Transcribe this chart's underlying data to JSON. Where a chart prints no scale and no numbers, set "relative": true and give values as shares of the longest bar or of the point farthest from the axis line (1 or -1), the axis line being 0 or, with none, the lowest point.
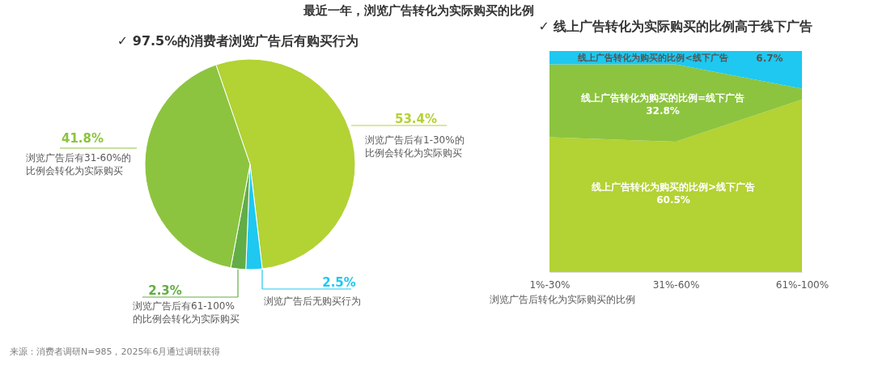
{
  "chart_data": [
    {
      "type": "pie",
      "title": "最近一年，浏览广告转化为实际购买的比例",
      "subtitle": "✓  97.5%的消费者浏览广告后有购买行为",
      "categories": [
        "浏览广告后有1-30%的比例会转化为实际购买",
        "浏览广告后无购买行为",
        "浏览广告后有61-100%的比例会转化为实际购买",
        "浏览广告后有31-60%的比例会转化为实际购买"
      ],
      "values": [
        53.4,
        2.5,
        2.3,
        41.8
      ],
      "colors": [
        "#b3d234",
        "#1ec8f0",
        "#62ad45",
        "#8cc43f"
      ],
      "value_labels": [
        "53.4%",
        "2.5%",
        "2.3%",
        "41.8%"
      ],
      "legend": false,
      "annotations": [
        "来源：消费者调研N=985，2025年6月通过调研获得"
      ]
    },
    {
      "type": "area",
      "title": "✓  线上广告转化为实际购买的比例高于线下广告",
      "xlabel": "浏览广告后转化为实际购买的比例",
      "categories": [
        "1%-30%",
        "31%-60%",
        "61%-100%"
      ],
      "stacked": true,
      "relative": true,
      "legend": false,
      "grid": false,
      "series": [
        {
          "name": "线上广告转化为购买的比例>线下广告",
          "color": "#b3d234",
          "values": [
            0.61,
            0.59,
            0.78
          ]
        },
        {
          "name": "线上广告转化为购买的比例=线下广告",
          "color": "#8cc43f",
          "values": [
            0.33,
            0.35,
            0.05
          ]
        },
        {
          "name": "线上广告转化为购买的比例<线下广告",
          "color": "#1ec8f0",
          "values": [
            0.06,
            0.06,
            0.17
          ]
        }
      ],
      "annotations": [
        "60.5%",
        "32.8%",
        "6.7%"
      ]
    }
  ]
}
